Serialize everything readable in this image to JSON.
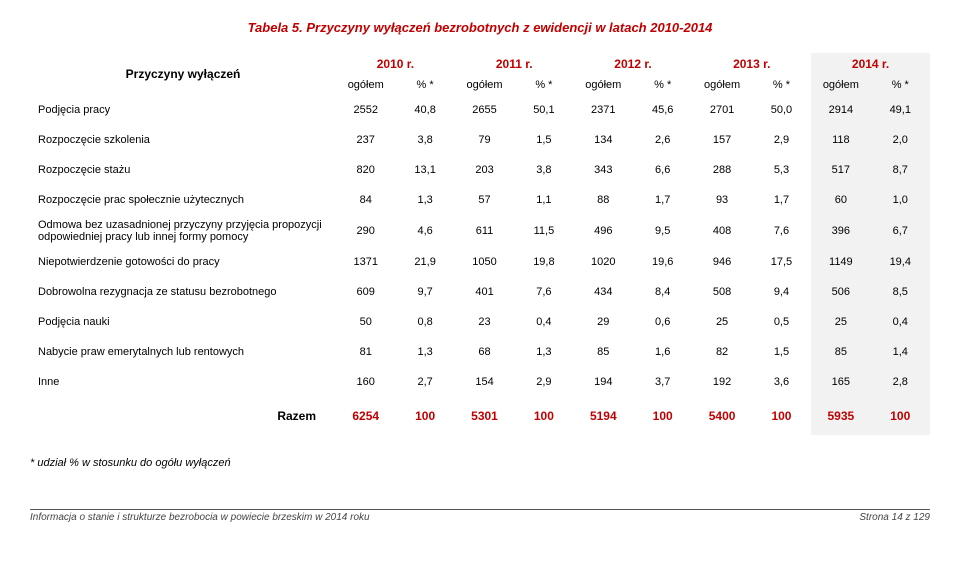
{
  "title": {
    "text": "Tabela 5. Przyczyny wyłączeń bezrobotnych z ewidencji w latach 2010-2014",
    "color": "#c00000"
  },
  "table": {
    "rowhead_label": "Przyczyny wyłączeń",
    "years": [
      {
        "label": "2010 r.",
        "color": "#c00000"
      },
      {
        "label": "2011 r.",
        "color": "#c00000"
      },
      {
        "label": "2012 r.",
        "color": "#c00000"
      },
      {
        "label": "2013 r.",
        "color": "#c00000"
      },
      {
        "label": "2014 r.",
        "color": "#c00000",
        "highlight_bg": "#f2f2f2"
      }
    ],
    "subcols": [
      "ogółem",
      "% *"
    ],
    "rows": [
      {
        "label": "Podjęcia pracy",
        "vals": [
          "2552",
          "40,8",
          "2655",
          "50,1",
          "2371",
          "45,6",
          "2701",
          "50,0",
          "2914",
          "49,1"
        ]
      },
      {
        "label": "Rozpoczęcie szkolenia",
        "vals": [
          "237",
          "3,8",
          "79",
          "1,5",
          "134",
          "2,6",
          "157",
          "2,9",
          "118",
          "2,0"
        ]
      },
      {
        "label": "Rozpoczęcie stażu",
        "vals": [
          "820",
          "13,1",
          "203",
          "3,8",
          "343",
          "6,6",
          "288",
          "5,3",
          "517",
          "8,7"
        ]
      },
      {
        "label": "Rozpoczęcie prac społecznie użytecznych",
        "vals": [
          "84",
          "1,3",
          "57",
          "1,1",
          "88",
          "1,7",
          "93",
          "1,7",
          "60",
          "1,0"
        ]
      },
      {
        "label": "Odmowa bez uzasadnionej przyczyny przyjęcia propozycji odpowiedniej pracy lub innej formy pomocy",
        "vals": [
          "290",
          "4,6",
          "611",
          "11,5",
          "496",
          "9,5",
          "408",
          "7,6",
          "396",
          "6,7"
        ]
      },
      {
        "label": "Niepotwierdzenie gotowości do pracy",
        "vals": [
          "1371",
          "21,9",
          "1050",
          "19,8",
          "1020",
          "19,6",
          "946",
          "17,5",
          "1149",
          "19,4"
        ]
      },
      {
        "label": "Dobrowolna rezygnacja ze statusu bezrobotnego",
        "vals": [
          "609",
          "9,7",
          "401",
          "7,6",
          "434",
          "8,4",
          "508",
          "9,4",
          "506",
          "8,5"
        ]
      },
      {
        "label": "Podjęcia nauki",
        "vals": [
          "50",
          "0,8",
          "23",
          "0,4",
          "29",
          "0,6",
          "25",
          "0,5",
          "25",
          "0,4"
        ]
      },
      {
        "label": "Nabycie praw emerytalnych lub rentowych",
        "vals": [
          "81",
          "1,3",
          "68",
          "1,3",
          "85",
          "1,6",
          "82",
          "1,5",
          "85",
          "1,4"
        ]
      },
      {
        "label": "Inne",
        "vals": [
          "160",
          "2,7",
          "154",
          "2,9",
          "194",
          "3,7",
          "192",
          "3,6",
          "165",
          "2,8"
        ]
      }
    ],
    "total": {
      "label": "Razem",
      "vals": [
        "6254",
        "100",
        "5301",
        "100",
        "5194",
        "100",
        "5400",
        "100",
        "5935",
        "100"
      ],
      "color": "#c00000"
    },
    "col_widths": {
      "rowhead": "34%",
      "data": "6.6%"
    },
    "highlight_bg": "#f2f2f2"
  },
  "footnote": "* udział % w stosunku do ogółu wyłączeń",
  "footer": {
    "left": "Informacja o stanie i strukturze bezrobocia w powiecie brzeskim w 2014 roku",
    "right": "Strona 14 z 129"
  }
}
